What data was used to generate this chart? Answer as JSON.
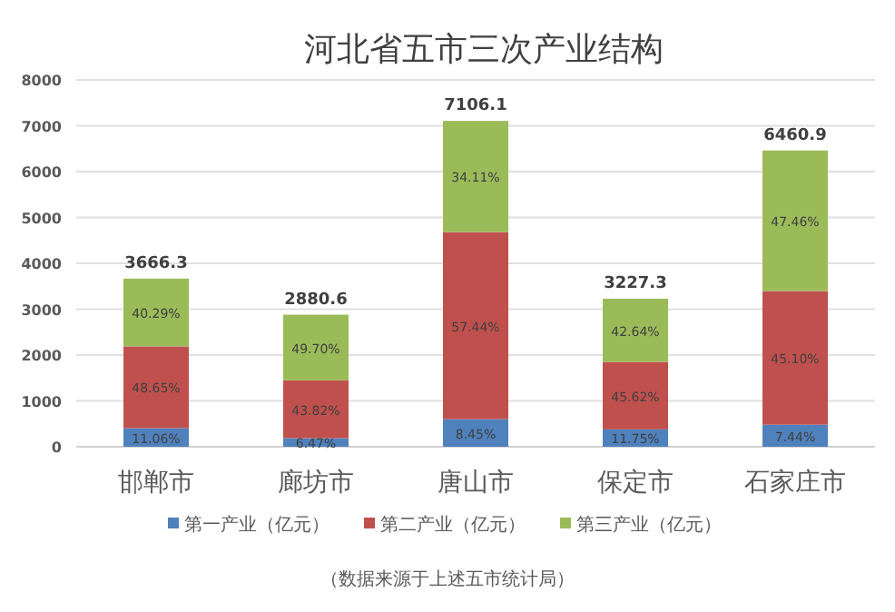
{
  "chart_data": {
    "type": "bar",
    "title": "河北省五市三次产业结构",
    "stacked": true,
    "categories": [
      "邯郸市",
      "廊坊市",
      "唐山市",
      "保定市",
      "石家庄市"
    ],
    "series": [
      {
        "name": "第一产业（亿元）",
        "color": "#4f81bd",
        "values": [
          405.5,
          186.4,
          600.5,
          379.2,
          480.7
        ]
      },
      {
        "name": "第二产业（亿元）",
        "color": "#c0504d",
        "values": [
          1783.6,
          1262.3,
          4081.7,
          1472.3,
          2913.9
        ]
      },
      {
        "name": "第三产业（亿元）",
        "color": "#9bbb59",
        "values": [
          1477.2,
          1431.9,
          2423.9,
          1375.8,
          3066.3
        ]
      }
    ],
    "totals": [
      "3666.3",
      "2880.6",
      "7106.1",
      "3227.3",
      "6460.9"
    ],
    "ylim": [
      0,
      8000
    ],
    "yticks": [
      0,
      1000,
      2000,
      3000,
      4000,
      5000,
      6000,
      7000,
      8000
    ],
    "grid": "y",
    "legend": "bottom",
    "annotations": [
      "11.06%",
      "48.65%",
      "40.29%",
      "6.47%",
      "43.82%",
      "49.70%",
      "8.45%",
      "57.44%",
      "34.11%",
      "11.75%",
      "45.62%",
      "42.64%",
      "7.44%",
      "45.10%",
      "47.46%",
      "（数据来源于上述五市统计局）"
    ]
  }
}
